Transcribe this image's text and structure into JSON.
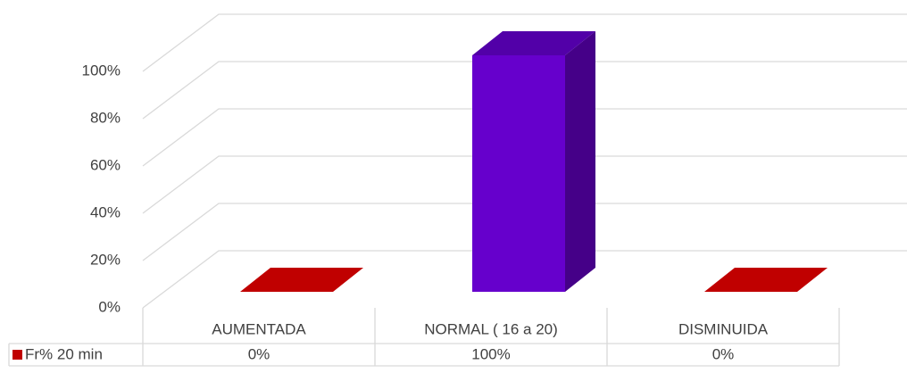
{
  "chart_data": {
    "type": "bar3d",
    "categories": [
      "AUMENTADA",
      "NORMAL ( 16 a 20)",
      "DISMINUIDA"
    ],
    "series": [
      {
        "name": "Fr%  20 min",
        "color": "#c00000",
        "highlight_color": "#6600cc",
        "values": [
          0,
          100,
          0
        ],
        "value_labels": [
          "0%",
          "100%",
          "0%"
        ]
      }
    ],
    "ylim": [
      0,
      100
    ],
    "yticks": [
      {
        "value": 0,
        "label": "0%"
      },
      {
        "value": 20,
        "label": "20%"
      },
      {
        "value": 40,
        "label": "40%"
      },
      {
        "value": 60,
        "label": "60%"
      },
      {
        "value": 80,
        "label": "80%"
      },
      {
        "value": 100,
        "label": "100%"
      }
    ],
    "grid": true
  }
}
